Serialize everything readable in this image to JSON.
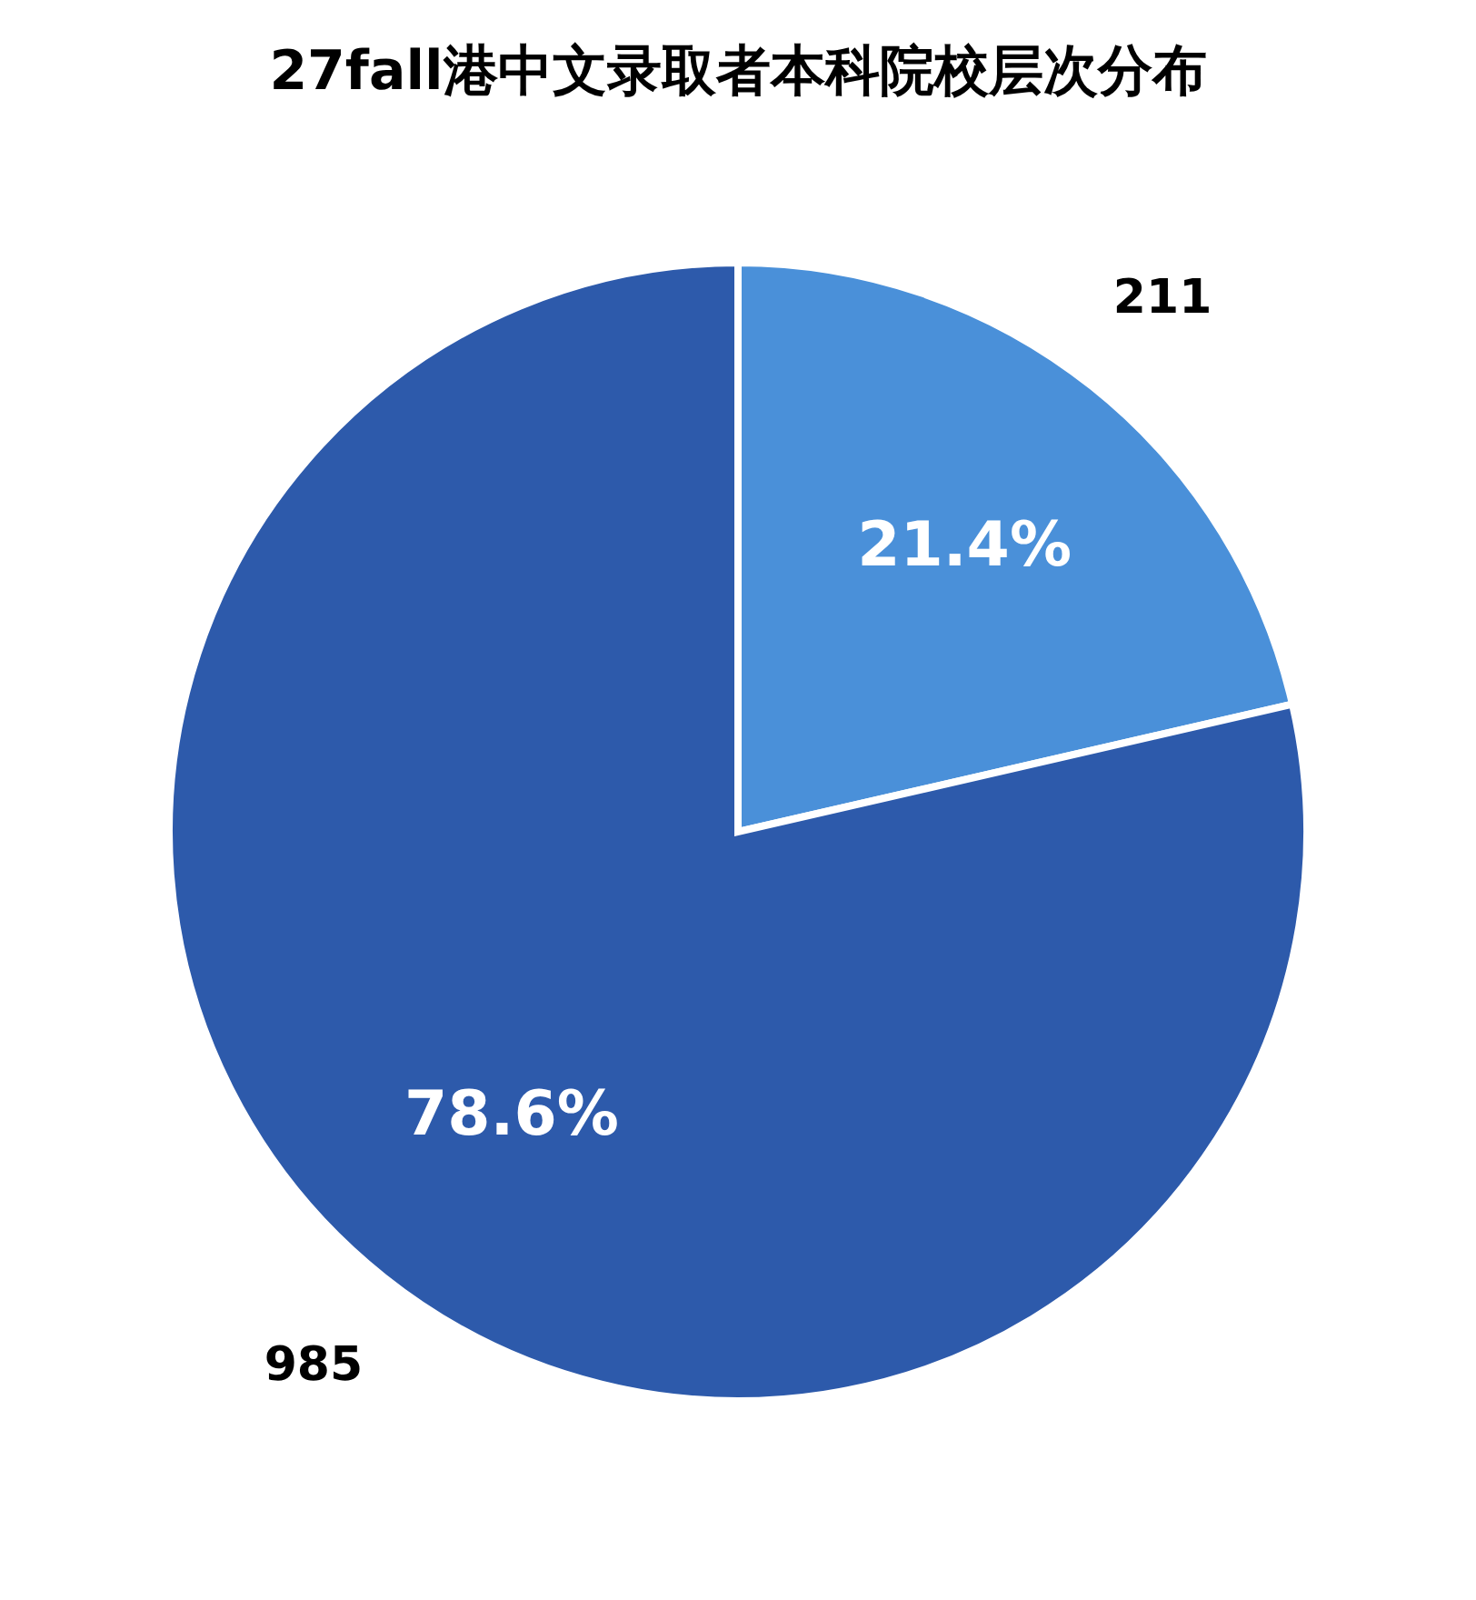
{
  "chart_data": {
    "type": "pie",
    "title": "27fall港中文录取者本科院校层次分布",
    "categories": [
      "211",
      "985"
    ],
    "values": [
      21.4,
      78.6
    ],
    "colors": [
      "#4a90d9",
      "#2d5aab"
    ],
    "value_labels": [
      "21.4%",
      "78.6%"
    ],
    "legend": false
  }
}
